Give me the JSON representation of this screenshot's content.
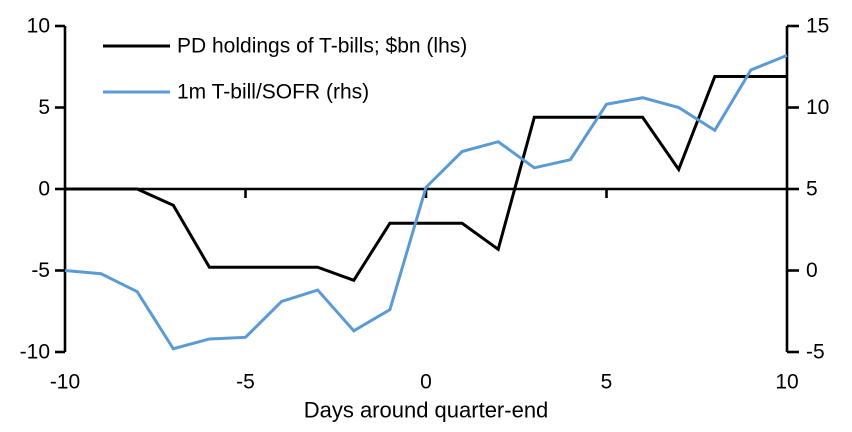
{
  "chart_data": {
    "type": "line",
    "title": "",
    "xlabel": "Days around quarter-end",
    "ylabel_left": "",
    "ylabel_right": "",
    "grid": false,
    "legend_position": "top-left",
    "xlim": [
      -10,
      10
    ],
    "left_ylim": [
      -10,
      10
    ],
    "right_ylim": [
      -5,
      15
    ],
    "xticks": [
      -10,
      -5,
      0,
      5,
      10
    ],
    "left_yticks": [
      10,
      5,
      0,
      -5,
      -10
    ],
    "right_yticks": [
      15,
      10,
      5,
      0,
      -5
    ],
    "x": [
      -10,
      -9,
      -8,
      -7,
      -6,
      -5,
      -4,
      -3,
      -2,
      -1,
      0,
      1,
      2,
      3,
      4,
      5,
      6,
      7,
      8,
      9,
      10
    ],
    "series": [
      {
        "name": "PD holdings of T-bills; $bn (lhs)",
        "axis": "left",
        "color": "#000000",
        "values": [
          0,
          0,
          0,
          -1.0,
          -4.8,
          -4.8,
          -4.8,
          -4.8,
          -5.6,
          -2.1,
          -2.1,
          -2.1,
          -3.7,
          4.4,
          4.4,
          4.4,
          4.4,
          1.2,
          6.9,
          6.9,
          6.9
        ]
      },
      {
        "name": "1m T-bill/SOFR (rhs)",
        "axis": "right",
        "color": "#5B9BD5",
        "values": [
          0.0,
          -0.2,
          -1.3,
          -4.8,
          -4.2,
          -4.1,
          -1.9,
          -1.2,
          -3.7,
          -2.4,
          5.1,
          7.3,
          7.9,
          6.3,
          6.8,
          10.2,
          10.6,
          10.0,
          8.6,
          12.3,
          13.2
        ]
      }
    ]
  }
}
